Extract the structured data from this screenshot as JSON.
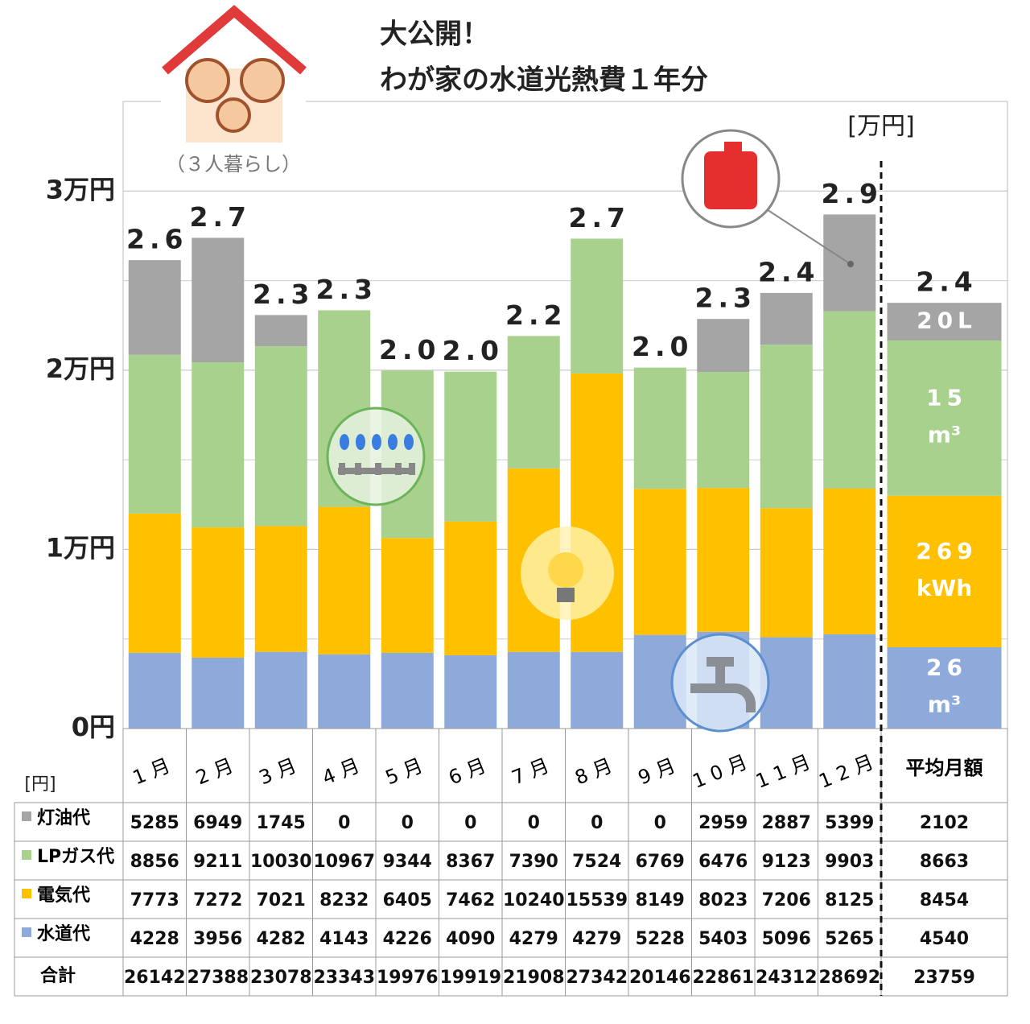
{
  "chart_data": {
    "type": "bar",
    "stacked": true,
    "title": [
      "大公開！",
      "わが家の水道光熱費１年分"
    ],
    "subtitle": "（３人暮らし）",
    "unit_label": "[万円]",
    "table_unit": "[円]",
    "categories": [
      "1月",
      "2月",
      "3月",
      "4月",
      "5月",
      "6月",
      "7月",
      "8月",
      "9月",
      "10月",
      "11月",
      "12月",
      "平均月額"
    ],
    "series": [
      {
        "name": "水道代",
        "color": "#8eaadb",
        "values": [
          4228,
          3956,
          4282,
          4143,
          4226,
          4090,
          4279,
          4279,
          5228,
          5403,
          5096,
          5265,
          4540
        ]
      },
      {
        "name": "電気代",
        "color": "#ffc000",
        "values": [
          7773,
          7272,
          7021,
          8232,
          6405,
          7462,
          10240,
          15539,
          8149,
          8023,
          7206,
          8125,
          8454
        ]
      },
      {
        "name": "LPガス代",
        "color": "#a9d18e",
        "values": [
          8856,
          9211,
          10030,
          10967,
          9344,
          8367,
          7390,
          7524,
          6769,
          6476,
          9123,
          9903,
          8663
        ]
      },
      {
        "name": "灯油代",
        "color": "#a5a5a5",
        "values": [
          5285,
          6949,
          1745,
          0,
          0,
          0,
          0,
          0,
          0,
          2959,
          2887,
          5399,
          2102
        ]
      }
    ],
    "totals": {
      "name": "合計",
      "values": [
        26142,
        27388,
        23078,
        23343,
        19976,
        19919,
        21908,
        27342,
        20146,
        22861,
        24312,
        28692,
        23759
      ],
      "value_labels": [
        "2.6",
        "2.7",
        "2.3",
        "2.3",
        "2.0",
        "2.0",
        "2.2",
        "2.7",
        "2.0",
        "2.3",
        "2.4",
        "2.9",
        "2.4"
      ]
    },
    "average_notes": [
      {
        "text": "26",
        "unit": "m³"
      },
      {
        "text": "269",
        "unit": "kWh"
      },
      {
        "text": "15",
        "unit": "m³"
      },
      {
        "text": "20L"
      }
    ],
    "ylim": [
      0,
      35000
    ],
    "yticks": [
      {
        "value": 0,
        "label": "0円"
      },
      {
        "value": 10000,
        "label": "1万円"
      },
      {
        "value": 20000,
        "label": "2万円"
      },
      {
        "value": 30000,
        "label": "3万円"
      }
    ],
    "minor_gridlines": [
      5000,
      15000,
      25000
    ],
    "grid": true
  }
}
